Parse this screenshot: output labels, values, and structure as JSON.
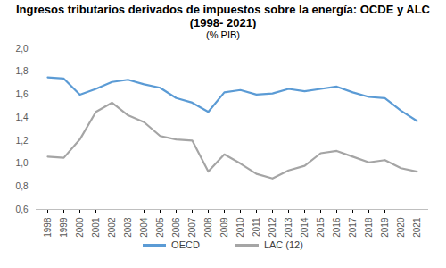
{
  "chart_data": {
    "type": "line",
    "title": "Ingresos tributarios derivados de impuestos sobre la energía: OCDE y ALC (1998- 2021)",
    "subtitle": "(% PIB)",
    "categories": [
      "1998",
      "1999",
      "2000",
      "2001",
      "2002",
      "2003",
      "2004",
      "2005",
      "2006",
      "2007",
      "2008",
      "2009",
      "2010",
      "2011",
      "2012",
      "2013",
      "2014",
      "2015",
      "2016",
      "2017",
      "2018",
      "2019",
      "2020",
      "2021"
    ],
    "series": [
      {
        "name": "OECD",
        "color": "#5b9bd5",
        "values": [
          1.75,
          1.74,
          1.6,
          1.65,
          1.71,
          1.73,
          1.69,
          1.66,
          1.57,
          1.53,
          1.45,
          1.62,
          1.64,
          1.6,
          1.61,
          1.65,
          1.63,
          1.65,
          1.67,
          1.62,
          1.58,
          1.57,
          1.46,
          1.37
        ]
      },
      {
        "name": "LAC (12)",
        "color": "#a5a5a5",
        "values": [
          1.06,
          1.05,
          1.21,
          1.45,
          1.53,
          1.42,
          1.36,
          1.24,
          1.21,
          1.2,
          0.93,
          1.08,
          1.0,
          0.91,
          0.87,
          0.94,
          0.98,
          1.09,
          1.11,
          1.06,
          1.01,
          1.03,
          0.96,
          0.93
        ]
      }
    ],
    "ylim": [
      0.6,
      2.0
    ],
    "yticks": [
      {
        "value": 0.6,
        "label": "0,6"
      },
      {
        "value": 0.8,
        "label": "0,8"
      },
      {
        "value": 1.0,
        "label": "1,0"
      },
      {
        "value": 1.2,
        "label": "1,2"
      },
      {
        "value": 1.4,
        "label": "1,4"
      },
      {
        "value": 1.6,
        "label": "1,6"
      },
      {
        "value": 1.8,
        "label": "1,8"
      },
      {
        "value": 2.0,
        "label": "2,0"
      }
    ],
    "grid": false,
    "legend": "bottom"
  }
}
